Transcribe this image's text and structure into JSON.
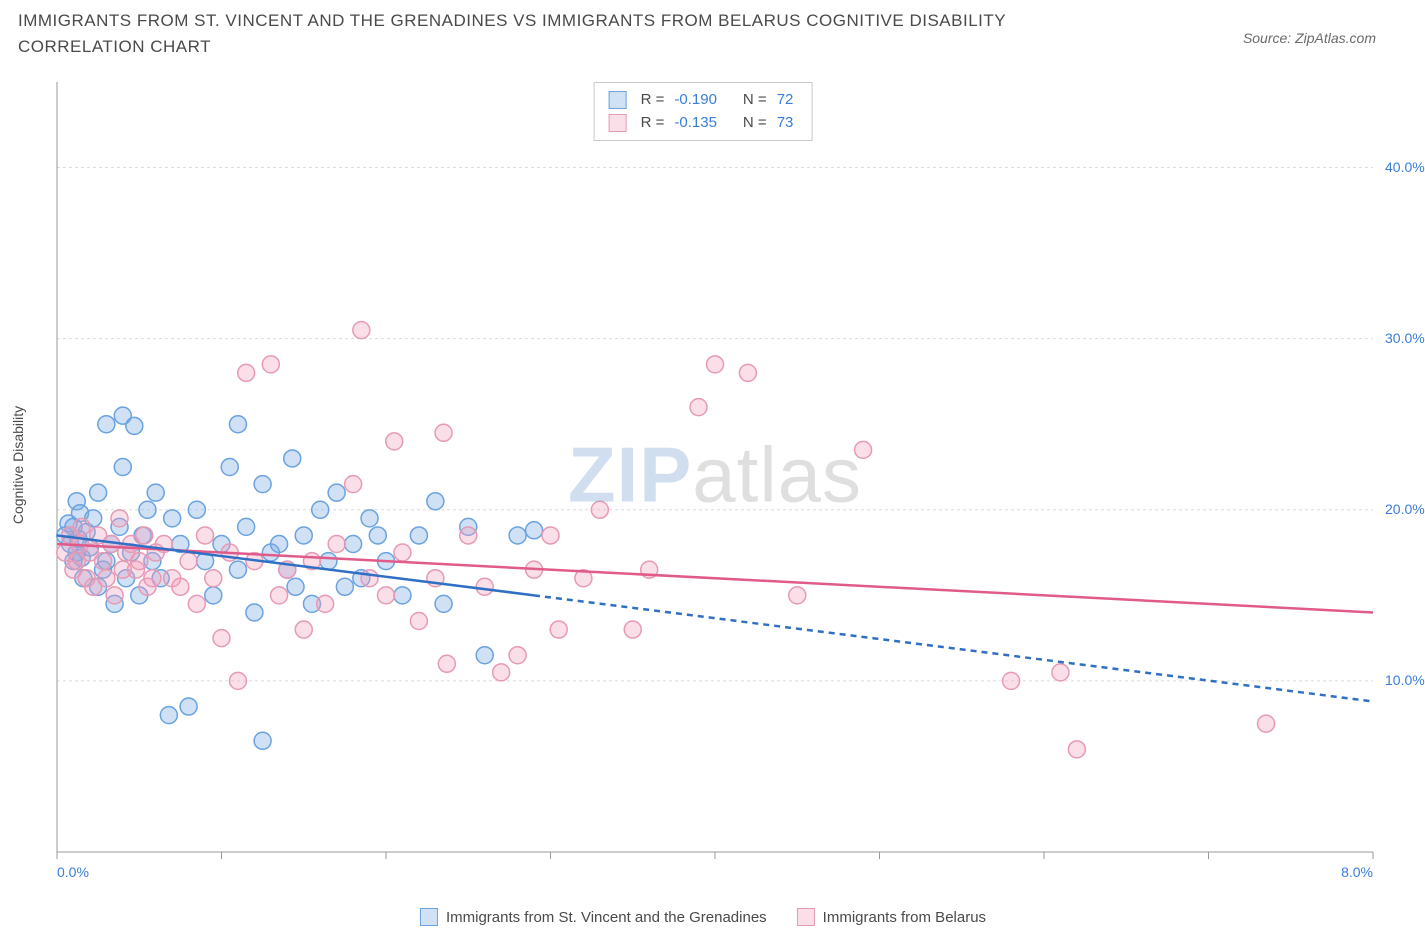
{
  "title": "IMMIGRANTS FROM ST. VINCENT AND THE GRENADINES VS IMMIGRANTS FROM BELARUS COGNITIVE DISABILITY CORRELATION CHART",
  "source": "Source: ZipAtlas.com",
  "y_axis_label": "Cognitive Disability",
  "watermark": {
    "part1": "ZIP",
    "part2": "atlas"
  },
  "chart": {
    "type": "scatter",
    "background_color": "#ffffff",
    "plot_border_color": "#9a9a9a",
    "grid_color": "#dcdcdc",
    "grid_dash": "3,3",
    "xlim": [
      0.0,
      8.0
    ],
    "ylim": [
      0.0,
      45.0
    ],
    "x_ticks": [
      0.0,
      1.0,
      2.0,
      3.0,
      4.0,
      5.0,
      6.0,
      7.0,
      8.0
    ],
    "x_tick_labels_shown": {
      "0.0": "0.0%",
      "8.0": "8.0%"
    },
    "y_ticks": [
      10.0,
      20.0,
      30.0,
      40.0
    ],
    "y_tick_labels": [
      "10.0%",
      "20.0%",
      "30.0%",
      "40.0%"
    ],
    "y_tick_label_color": "#3b7dd8",
    "x_tick_label_color": "#3b7dd8",
    "marker_radius": 8.5,
    "marker_stroke_width": 1.5,
    "series": [
      {
        "key": "svg_series",
        "label": "Immigrants from St. Vincent and the Grenadines",
        "fill": "rgba(120,170,230,0.35)",
        "stroke": "#6aa3e0",
        "line_color": "#2f6fc4",
        "R": "-0.190",
        "N": "72",
        "trend": {
          "solid": [
            [
              0.0,
              18.5
            ],
            [
              2.9,
              15.0
            ]
          ],
          "dashed": [
            [
              2.9,
              15.0
            ],
            [
              8.0,
              8.8
            ]
          ]
        },
        "points": [
          [
            0.05,
            18.5
          ],
          [
            0.07,
            19.2
          ],
          [
            0.08,
            18.0
          ],
          [
            0.1,
            19.0
          ],
          [
            0.1,
            17.0
          ],
          [
            0.12,
            20.5
          ],
          [
            0.12,
            17.5
          ],
          [
            0.13,
            18.3
          ],
          [
            0.14,
            19.8
          ],
          [
            0.15,
            17.2
          ],
          [
            0.16,
            16.0
          ],
          [
            0.18,
            18.7
          ],
          [
            0.2,
            17.8
          ],
          [
            0.22,
            19.5
          ],
          [
            0.25,
            15.5
          ],
          [
            0.25,
            21.0
          ],
          [
            0.28,
            16.5
          ],
          [
            0.3,
            17.0
          ],
          [
            0.3,
            25.0
          ],
          [
            0.33,
            18.0
          ],
          [
            0.35,
            14.5
          ],
          [
            0.38,
            19.0
          ],
          [
            0.4,
            22.5
          ],
          [
            0.4,
            25.5
          ],
          [
            0.42,
            16.0
          ],
          [
            0.45,
            17.5
          ],
          [
            0.47,
            24.9
          ],
          [
            0.5,
            15.0
          ],
          [
            0.52,
            18.5
          ],
          [
            0.55,
            20.0
          ],
          [
            0.58,
            17.0
          ],
          [
            0.6,
            21.0
          ],
          [
            0.63,
            16.0
          ],
          [
            0.68,
            8.0
          ],
          [
            0.7,
            19.5
          ],
          [
            0.75,
            18.0
          ],
          [
            0.8,
            8.5
          ],
          [
            0.85,
            20.0
          ],
          [
            0.9,
            17.0
          ],
          [
            0.95,
            15.0
          ],
          [
            1.0,
            18.0
          ],
          [
            1.05,
            22.5
          ],
          [
            1.1,
            16.5
          ],
          [
            1.1,
            25.0
          ],
          [
            1.15,
            19.0
          ],
          [
            1.2,
            14.0
          ],
          [
            1.25,
            21.5
          ],
          [
            1.25,
            6.5
          ],
          [
            1.3,
            17.5
          ],
          [
            1.35,
            18.0
          ],
          [
            1.4,
            16.5
          ],
          [
            1.43,
            23.0
          ],
          [
            1.45,
            15.5
          ],
          [
            1.5,
            18.5
          ],
          [
            1.55,
            14.5
          ],
          [
            1.6,
            20.0
          ],
          [
            1.65,
            17.0
          ],
          [
            1.7,
            21.0
          ],
          [
            1.75,
            15.5
          ],
          [
            1.8,
            18.0
          ],
          [
            1.85,
            16.0
          ],
          [
            1.9,
            19.5
          ],
          [
            1.95,
            18.5
          ],
          [
            2.0,
            17.0
          ],
          [
            2.1,
            15.0
          ],
          [
            2.2,
            18.5
          ],
          [
            2.3,
            20.5
          ],
          [
            2.35,
            14.5
          ],
          [
            2.5,
            19.0
          ],
          [
            2.6,
            11.5
          ],
          [
            2.8,
            18.5
          ],
          [
            2.9,
            18.8
          ]
        ]
      },
      {
        "key": "belarus_series",
        "label": "Immigrants from Belarus",
        "fill": "rgba(240,160,190,0.35)",
        "stroke": "#e79ab5",
        "line_color": "#e05a8a",
        "R": "-0.135",
        "N": "73",
        "trend": {
          "solid": [
            [
              0.0,
              18.0
            ],
            [
              8.0,
              14.0
            ]
          ],
          "dashed": null
        },
        "points": [
          [
            0.05,
            17.5
          ],
          [
            0.08,
            18.5
          ],
          [
            0.1,
            16.5
          ],
          [
            0.12,
            17.0
          ],
          [
            0.14,
            18.0
          ],
          [
            0.15,
            19.0
          ],
          [
            0.18,
            16.0
          ],
          [
            0.2,
            17.5
          ],
          [
            0.22,
            15.5
          ],
          [
            0.25,
            18.5
          ],
          [
            0.28,
            17.0
          ],
          [
            0.3,
            16.0
          ],
          [
            0.33,
            18.0
          ],
          [
            0.35,
            15.0
          ],
          [
            0.38,
            19.5
          ],
          [
            0.4,
            16.5
          ],
          [
            0.42,
            17.5
          ],
          [
            0.45,
            18.0
          ],
          [
            0.48,
            16.5
          ],
          [
            0.5,
            17.0
          ],
          [
            0.53,
            18.5
          ],
          [
            0.55,
            15.5
          ],
          [
            0.58,
            16.0
          ],
          [
            0.6,
            17.5
          ],
          [
            0.65,
            18.0
          ],
          [
            0.7,
            16.0
          ],
          [
            0.75,
            15.5
          ],
          [
            0.8,
            17.0
          ],
          [
            0.85,
            14.5
          ],
          [
            0.9,
            18.5
          ],
          [
            0.95,
            16.0
          ],
          [
            1.0,
            12.5
          ],
          [
            1.05,
            17.5
          ],
          [
            1.1,
            10.0
          ],
          [
            1.15,
            28.0
          ],
          [
            1.2,
            17.0
          ],
          [
            1.3,
            28.5
          ],
          [
            1.35,
            15.0
          ],
          [
            1.4,
            16.5
          ],
          [
            1.5,
            13.0
          ],
          [
            1.55,
            17.0
          ],
          [
            1.63,
            14.5
          ],
          [
            1.7,
            18.0
          ],
          [
            1.8,
            21.5
          ],
          [
            1.85,
            30.5
          ],
          [
            1.9,
            16.0
          ],
          [
            2.0,
            15.0
          ],
          [
            2.05,
            24.0
          ],
          [
            2.1,
            17.5
          ],
          [
            2.2,
            13.5
          ],
          [
            2.3,
            16.0
          ],
          [
            2.35,
            24.5
          ],
          [
            2.37,
            11.0
          ],
          [
            2.5,
            18.5
          ],
          [
            2.6,
            15.5
          ],
          [
            2.7,
            10.5
          ],
          [
            2.8,
            11.5
          ],
          [
            2.9,
            16.5
          ],
          [
            3.0,
            18.5
          ],
          [
            3.05,
            13.0
          ],
          [
            3.2,
            16.0
          ],
          [
            3.3,
            20.0
          ],
          [
            3.5,
            13.0
          ],
          [
            3.6,
            16.5
          ],
          [
            3.9,
            26.0
          ],
          [
            4.0,
            28.5
          ],
          [
            4.2,
            28.0
          ],
          [
            4.9,
            23.5
          ],
          [
            5.8,
            10.0
          ],
          [
            6.1,
            10.5
          ],
          [
            6.2,
            6.0
          ],
          [
            7.35,
            7.5
          ],
          [
            4.5,
            15.0
          ]
        ]
      }
    ]
  },
  "legend_top": {
    "label_R": "R =",
    "label_N": "N ="
  },
  "legend_bottom": {}
}
